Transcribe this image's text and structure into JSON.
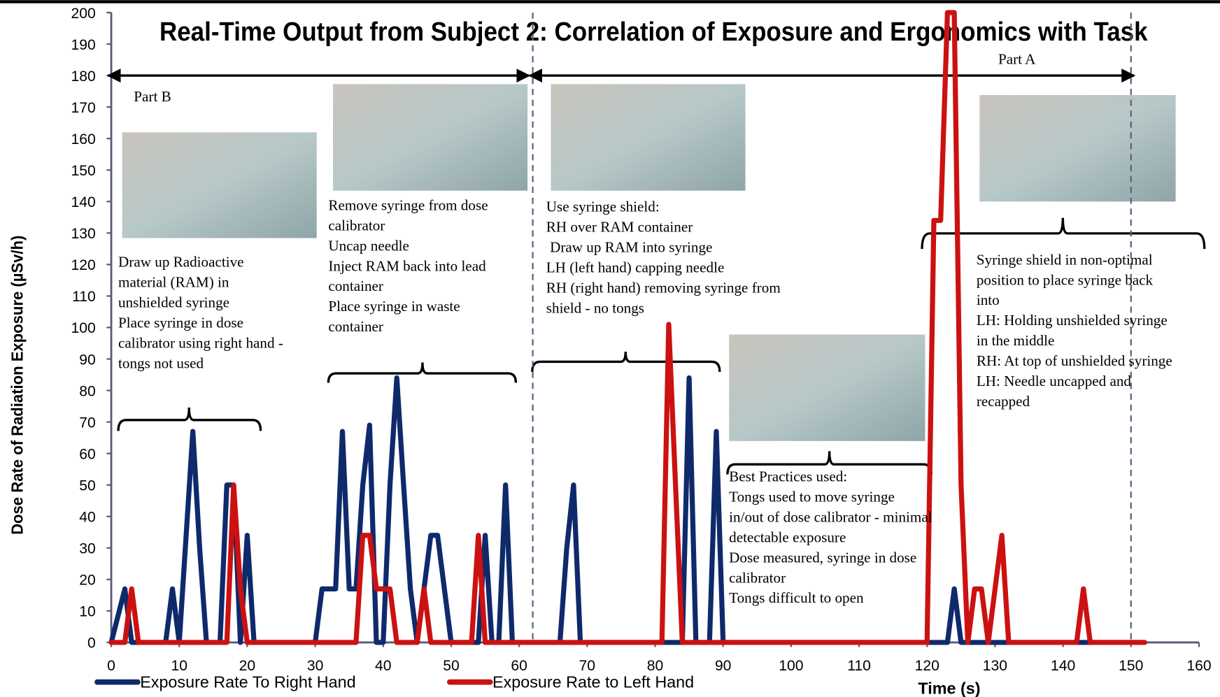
{
  "chart_data": {
    "type": "line",
    "title": "Real-Time Output from Subject 2: Correlation of Exposure and Ergonomics with Task",
    "x_label": "Time (s)",
    "y_label": "Dose Rate of Radiation Exposure (µSv/h)",
    "x": [
      0,
      2,
      3,
      4,
      8,
      9,
      10,
      12,
      13,
      14,
      16,
      17,
      18,
      19,
      20,
      21,
      30,
      31,
      33,
      34,
      35,
      36,
      37,
      38,
      39,
      40,
      41,
      42,
      43,
      44,
      45,
      46,
      47,
      48,
      49,
      50,
      53,
      54,
      55,
      56,
      57,
      58,
      59,
      66,
      67,
      68,
      69,
      81,
      82,
      83,
      84,
      85,
      86,
      88,
      89,
      90,
      120,
      121,
      122,
      123,
      124,
      125,
      126,
      127,
      128,
      129,
      131,
      132,
      142,
      143,
      144,
      152
    ],
    "series": [
      {
        "name": "Exposure Rate To Right Hand",
        "color": "#0f2a6b",
        "values": [
          0,
          17,
          0,
          0,
          0,
          17,
          0,
          67,
          30,
          0,
          0,
          50,
          50,
          0,
          34,
          0,
          0,
          17,
          17,
          67,
          17,
          17,
          50,
          69,
          0,
          0,
          50,
          84,
          50,
          17,
          0,
          17,
          34,
          34,
          17,
          0,
          0,
          0,
          34,
          0,
          0,
          50,
          0,
          0,
          30,
          50,
          0,
          0,
          0,
          0,
          0,
          84,
          0,
          0,
          67,
          0,
          0,
          0,
          0,
          0,
          17,
          0,
          0,
          0,
          0,
          0,
          0,
          0,
          0,
          0,
          0,
          0
        ]
      },
      {
        "name": "Exposure Rate to Left Hand",
        "color": "#cc1111",
        "values": [
          0,
          0,
          17,
          0,
          0,
          0,
          0,
          0,
          0,
          0,
          0,
          0,
          50,
          17,
          0,
          0,
          0,
          0,
          0,
          0,
          0,
          0,
          34,
          34,
          17,
          17,
          17,
          0,
          0,
          0,
          0,
          17,
          0,
          0,
          0,
          0,
          0,
          34,
          0,
          0,
          0,
          0,
          0,
          0,
          0,
          0,
          0,
          0,
          101,
          50,
          0,
          0,
          0,
          0,
          0,
          0,
          0,
          134,
          134,
          200,
          200,
          50,
          0,
          17,
          17,
          0,
          34,
          0,
          0,
          17,
          0,
          0
        ]
      }
    ],
    "xlim": [
      0,
      160
    ],
    "ylim": [
      0,
      200
    ],
    "xticks": [
      0,
      10,
      20,
      30,
      40,
      50,
      60,
      70,
      80,
      90,
      100,
      110,
      120,
      130,
      140,
      150,
      160
    ],
    "yticks": [
      0,
      10,
      20,
      30,
      40,
      50,
      60,
      70,
      80,
      90,
      100,
      110,
      120,
      130,
      140,
      150,
      160,
      170,
      180,
      190,
      200
    ],
    "reference_lines_x": [
      62,
      150
    ],
    "spans": [
      {
        "label": "Part B",
        "from": 0,
        "to": 61,
        "y": 180
      },
      {
        "label": "Part A",
        "from": 62,
        "to": 150,
        "y": 180
      }
    ],
    "annotations": [
      {
        "lines": [
          "Draw up Radioactive",
          "material (RAM) in",
          "unshielded syringe",
          "Place syringe in dose",
          "calibrator using right hand -",
          "tongs not used"
        ]
      },
      {
        "lines": [
          "Remove syringe from dose",
          "calibrator",
          "Uncap needle",
          "Inject RAM back into lead",
          "container",
          "Place syringe in waste",
          "container"
        ]
      },
      {
        "lines": [
          "Use syringe shield:",
          "RH over RAM container",
          " Draw up RAM into syringe",
          "LH (left hand) capping needle",
          "RH (right hand) removing syringe from",
          "shield - no tongs"
        ]
      },
      {
        "lines": [
          "Best Practices used:",
          "Tongs used to move syringe",
          "in/out of dose calibrator - minimal",
          "detectable exposure",
          "Dose measured, syringe in dose",
          "calibrator",
          "Tongs difficult to open"
        ]
      },
      {
        "lines": [
          "Syringe shield in non-optimal",
          "position to place syringe back",
          "into",
          "LH: Holding unshielded syringe",
          "in the middle",
          "RH: At top of unshielded syringe",
          "LH: Needle uncapped and",
          "recapped"
        ]
      }
    ]
  }
}
